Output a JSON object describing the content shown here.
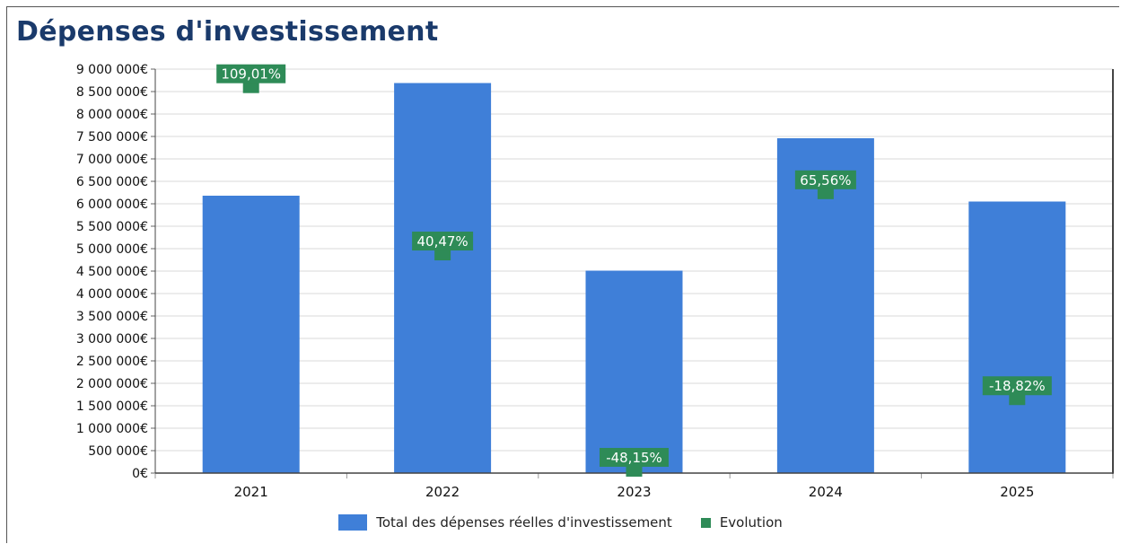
{
  "title": "Dépenses d'investissement",
  "colors": {
    "bar": "#3f7fd8",
    "evolution": "#2e8b57",
    "grid": "#d9d9d9",
    "title": "#1a3a6b"
  },
  "legend": {
    "bar_label": "Total des dépenses réelles d'investissement",
    "point_label": "Evolution"
  },
  "chart_data": {
    "type": "bar",
    "categories": [
      "2021",
      "2022",
      "2023",
      "2024",
      "2025"
    ],
    "ylim": [
      0,
      9000000
    ],
    "ytick_step": 500000,
    "yticks": [
      "0€",
      "500 000€",
      "1 000 000€",
      "1 500 000€",
      "2 000 000€",
      "2 500 000€",
      "3 000 000€",
      "3 500 000€",
      "4 000 000€",
      "4 500 000€",
      "5 000 000€",
      "5 500 000€",
      "6 000 000€",
      "6 500 000€",
      "7 000 000€",
      "7 500 000€",
      "8 000 000€",
      "8 500 000€",
      "9 000 000€"
    ],
    "grid": true,
    "legend_position": "bottom",
    "series": [
      {
        "name": "Total des dépenses réelles d'investissement",
        "values": [
          6180000,
          8690000,
          4510000,
          7460000,
          6050000
        ]
      },
      {
        "name": "Evolution",
        "values": [
          109.01,
          40.47,
          -48.15,
          65.56,
          -18.82
        ],
        "labels": [
          "109,01%",
          "40,47%",
          "-48,15%",
          "65,56%",
          "-18,82%"
        ]
      }
    ]
  }
}
